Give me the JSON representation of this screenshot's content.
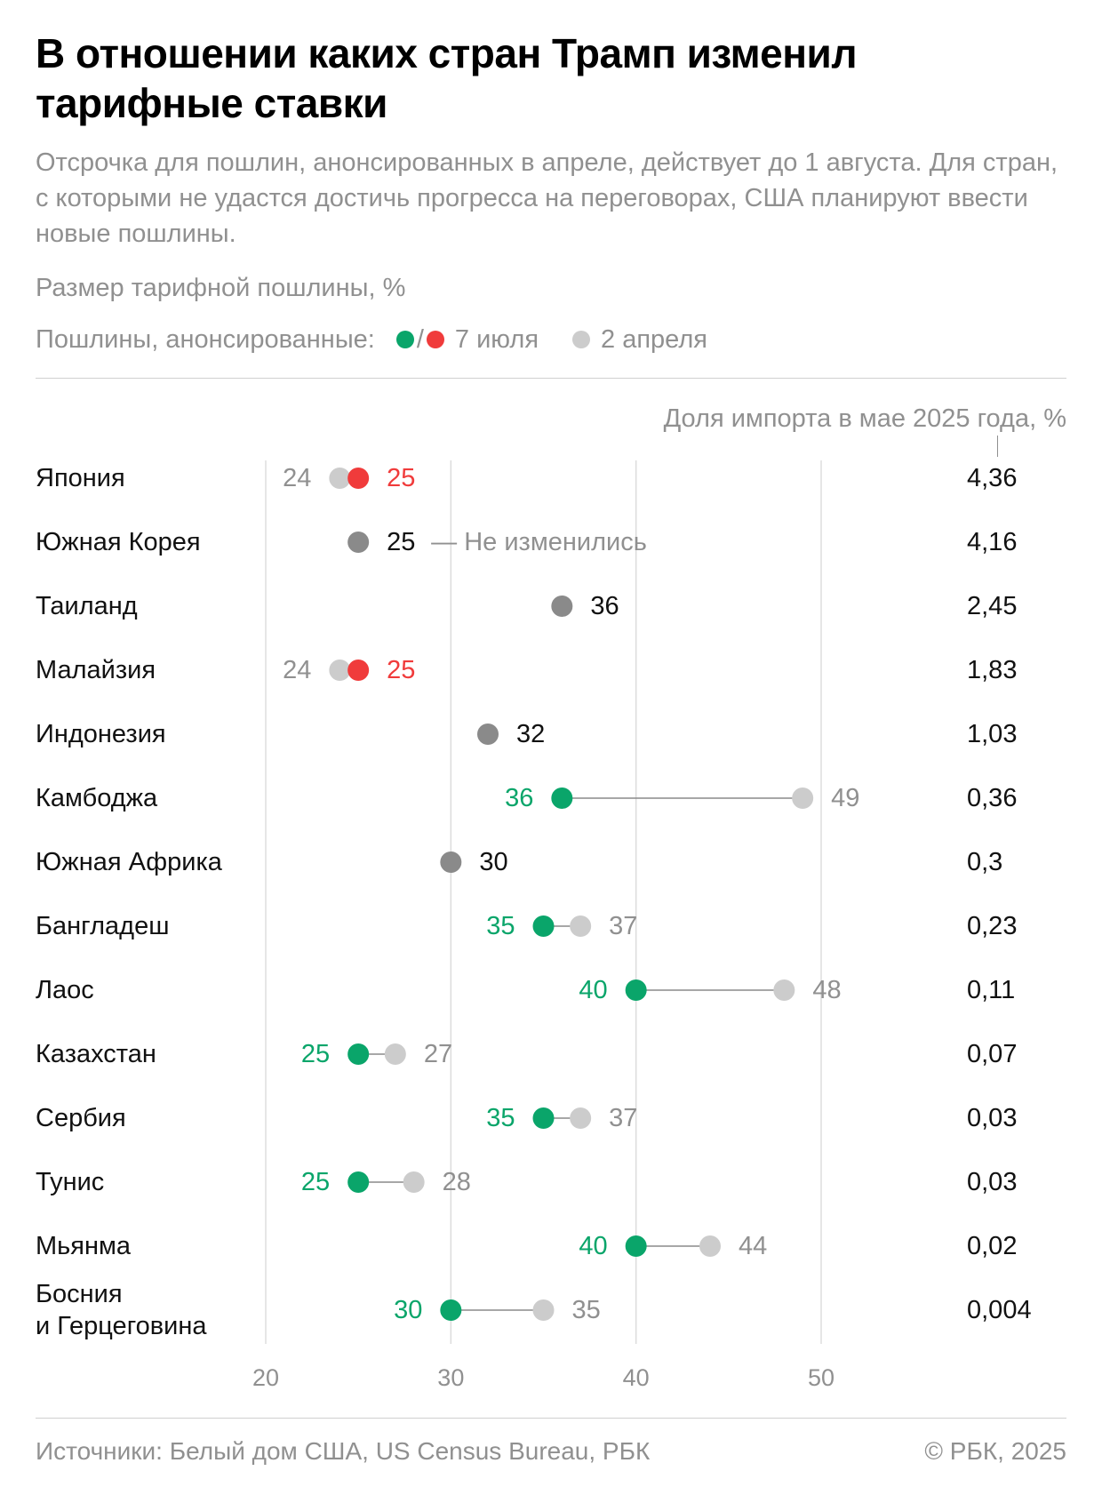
{
  "header": {
    "title": "В отношении каких стран Трамп изменил тарифные ставки",
    "subtitle": "Отсрочка для пошлин, анонсированных в апреле, действует до 1 августа. Для стран, с которыми не удастся достичь прогресса на переговорах, США планируют ввести новые пошлины."
  },
  "legend": {
    "prefix": "Пошлины, анонсированные:",
    "slash": "/",
    "new_label": "7 июля",
    "old_label": "2 апреля"
  },
  "colors": {
    "green": "#0aa56a",
    "red": "#f03b3b",
    "grey_dark": "#8a8a8a",
    "grey_light": "#cccccc",
    "text_grey": "#909090"
  },
  "footer": {
    "source": "Источники: Белый дом США, US Census Bureau, РБК",
    "copyright": "© РБК, 2025"
  },
  "chart_data": {
    "type": "dumbbell",
    "title": "В отношении каких стран Трамп изменил тарифные ставки",
    "xlabel": "Размер тарифной пошлины, %",
    "second_column_label": "Доля импорта в мае 2025 года, %",
    "xlim": [
      20,
      55
    ],
    "x_ticks": [
      20,
      30,
      40,
      50
    ],
    "unchanged_note": "— Не изменились",
    "rows": [
      {
        "country": [
          "Япония"
        ],
        "april": 24,
        "july": 25,
        "status": "increased",
        "share": "4,36"
      },
      {
        "country": [
          "Южная Корея"
        ],
        "april": 25,
        "july": 25,
        "status": "unchanged",
        "share": "4,16",
        "note": true
      },
      {
        "country": [
          "Таиланд"
        ],
        "april": 36,
        "july": 36,
        "status": "unchanged",
        "share": "2,45"
      },
      {
        "country": [
          "Малайзия"
        ],
        "april": 24,
        "july": 25,
        "status": "increased",
        "share": "1,83"
      },
      {
        "country": [
          "Индонезия"
        ],
        "april": 32,
        "july": 32,
        "status": "unchanged",
        "share": "1,03"
      },
      {
        "country": [
          "Камбоджа"
        ],
        "april": 49,
        "july": 36,
        "status": "decreased",
        "share": "0,36"
      },
      {
        "country": [
          "Южная Африка"
        ],
        "april": 30,
        "july": 30,
        "status": "unchanged",
        "share": "0,3"
      },
      {
        "country": [
          "Бангладеш"
        ],
        "april": 37,
        "july": 35,
        "status": "decreased",
        "share": "0,23"
      },
      {
        "country": [
          "Лаос"
        ],
        "april": 48,
        "july": 40,
        "status": "decreased",
        "share": "0,11"
      },
      {
        "country": [
          "Казахстан"
        ],
        "april": 27,
        "july": 25,
        "status": "decreased",
        "share": "0,07"
      },
      {
        "country": [
          "Сербия"
        ],
        "april": 37,
        "july": 35,
        "status": "decreased",
        "share": "0,03"
      },
      {
        "country": [
          "Тунис"
        ],
        "april": 28,
        "july": 25,
        "status": "decreased",
        "share": "0,03"
      },
      {
        "country": [
          "Мьянма"
        ],
        "april": 44,
        "july": 40,
        "status": "decreased",
        "share": "0,02"
      },
      {
        "country": [
          "Босния",
          "и Герцеговина"
        ],
        "april": 35,
        "july": 30,
        "status": "decreased",
        "share": "0,004"
      }
    ]
  }
}
